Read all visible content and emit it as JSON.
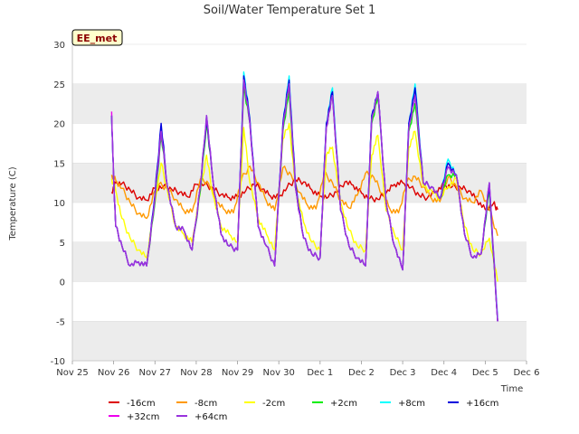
{
  "chart_data": {
    "type": "line",
    "title": "Soil/Water Temperature Set 1",
    "xlabel": "Time",
    "ylabel": "Temperature (C)",
    "badge": "EE_met",
    "xlim": [
      0,
      11
    ],
    "ylim": [
      -10,
      30
    ],
    "yticks": [
      -10,
      -5,
      0,
      5,
      10,
      15,
      20,
      25,
      30
    ],
    "xticks": [
      {
        "v": 0,
        "label": "Nov 25"
      },
      {
        "v": 1,
        "label": "Nov 26"
      },
      {
        "v": 2,
        "label": "Nov 27"
      },
      {
        "v": 3,
        "label": "Nov 28"
      },
      {
        "v": 4,
        "label": "Nov 29"
      },
      {
        "v": 5,
        "label": "Nov 30"
      },
      {
        "v": 6,
        "label": "Dec 1"
      },
      {
        "v": 7,
        "label": "Dec 2"
      },
      {
        "v": 8,
        "label": "Dec 3"
      },
      {
        "v": 9,
        "label": "Dec 4"
      },
      {
        "v": 10,
        "label": "Dec 5"
      },
      {
        "v": 11,
        "label": "Dec 6"
      }
    ],
    "bands": [
      [
        -10,
        -5
      ],
      [
        0,
        5
      ],
      [
        10,
        15
      ],
      [
        20,
        25
      ]
    ],
    "series": [
      {
        "name": "-16cm",
        "color": "#dd0000",
        "x": [
          0.95,
          1.05,
          1.2,
          1.4,
          1.6,
          1.8,
          2.0,
          2.2,
          2.4,
          2.6,
          2.8,
          3.0,
          3.2,
          3.4,
          3.6,
          3.8,
          4.0,
          4.2,
          4.4,
          4.6,
          4.8,
          5.0,
          5.2,
          5.4,
          5.6,
          5.8,
          6.0,
          6.2,
          6.4,
          6.6,
          6.8,
          7.0,
          7.2,
          7.4,
          7.6,
          7.8,
          8.0,
          8.2,
          8.4,
          8.6,
          8.8,
          9.0,
          9.2,
          9.4,
          9.6,
          9.8,
          10.0,
          10.2,
          10.3
        ],
        "y": [
          11.3,
          12.5,
          12.4,
          11.6,
          10.6,
          10.3,
          11.8,
          12.0,
          11.7,
          11.3,
          10.7,
          12.3,
          12.3,
          11.8,
          11.0,
          10.6,
          10.7,
          11.5,
          12.3,
          11.7,
          10.8,
          10.7,
          11.9,
          12.9,
          12.6,
          11.6,
          10.8,
          10.7,
          11.3,
          12.6,
          12.2,
          11.2,
          10.5,
          10.4,
          11.2,
          12.3,
          12.5,
          11.9,
          10.9,
          10.6,
          11.4,
          12.2,
          12.0,
          11.9,
          11.5,
          10.3,
          9.1,
          9.9,
          9.1
        ]
      },
      {
        "name": "-8cm",
        "color": "#ff9900",
        "x": [
          0.95,
          1.05,
          1.2,
          1.4,
          1.6,
          1.8,
          2.0,
          2.1,
          2.3,
          2.5,
          2.7,
          2.9,
          3.1,
          3.3,
          3.5,
          3.7,
          3.9,
          4.1,
          4.3,
          4.5,
          4.7,
          4.9,
          5.1,
          5.3,
          5.5,
          5.7,
          5.9,
          6.1,
          6.3,
          6.5,
          6.7,
          6.9,
          7.1,
          7.3,
          7.5,
          7.7,
          7.9,
          8.1,
          8.3,
          8.5,
          8.7,
          8.9,
          9.1,
          9.3,
          9.5,
          9.7,
          9.9,
          10.1,
          10.3
        ],
        "y": [
          13.5,
          12.8,
          11.8,
          10.0,
          8.6,
          8.0,
          11.5,
          12.3,
          11.8,
          10.4,
          9.0,
          8.8,
          13.0,
          12.4,
          10.0,
          9.0,
          8.7,
          13.0,
          14.6,
          12.5,
          10.2,
          9.0,
          14.4,
          13.5,
          11.3,
          9.6,
          9.2,
          13.7,
          12.5,
          10.3,
          9.3,
          10.9,
          13.7,
          13.2,
          11.2,
          9.1,
          8.7,
          12.6,
          13.3,
          12.0,
          10.5,
          10.1,
          13.2,
          12.0,
          10.5,
          10.0,
          11.5,
          9.1,
          5.8
        ]
      },
      {
        "name": "-2cm",
        "color": "#ffff00",
        "x": [
          0.95,
          1.05,
          1.2,
          1.4,
          1.6,
          1.8,
          2.0,
          2.15,
          2.3,
          2.5,
          2.7,
          2.9,
          3.1,
          3.25,
          3.4,
          3.6,
          3.8,
          4.0,
          4.15,
          4.3,
          4.5,
          4.7,
          4.9,
          5.1,
          5.25,
          5.4,
          5.6,
          5.8,
          6.0,
          6.15,
          6.3,
          6.5,
          6.7,
          6.9,
          7.1,
          7.25,
          7.4,
          7.6,
          7.8,
          8.0,
          8.15,
          8.3,
          8.5,
          8.7,
          8.9,
          9.1,
          9.3,
          9.5,
          9.7,
          9.9,
          10.1,
          10.3
        ],
        "y": [
          13.0,
          11.5,
          8.0,
          5.5,
          4.0,
          3.0,
          10.0,
          15.0,
          11.5,
          7.0,
          6.0,
          5.0,
          11.5,
          16.0,
          11.0,
          7.0,
          6.0,
          5.0,
          19.5,
          12.5,
          8.0,
          6.0,
          4.0,
          18.0,
          20.0,
          12.0,
          7.5,
          5.0,
          4.0,
          16.0,
          17.0,
          10.0,
          6.5,
          4.5,
          4.0,
          16.0,
          18.5,
          9.0,
          6.0,
          4.0,
          17.0,
          19.0,
          12.0,
          11.5,
          10.5,
          12.0,
          13.0,
          7.0,
          4.0,
          3.5,
          5.5,
          0.0
        ]
      },
      {
        "name": "+2cm",
        "color": "#00ee00",
        "x": [
          0.95,
          1.0,
          1.05,
          1.2,
          1.4,
          1.6,
          1.8,
          2.0,
          2.15,
          2.3,
          2.5,
          2.7,
          2.9,
          3.1,
          3.25,
          3.4,
          3.6,
          3.8,
          4.0,
          4.15,
          4.3,
          4.5,
          4.7,
          4.9,
          5.1,
          5.25,
          5.4,
          5.6,
          5.8,
          6.0,
          6.15,
          6.3,
          6.5,
          6.7,
          6.9,
          7.1,
          7.25,
          7.4,
          7.6,
          7.8,
          8.0,
          8.15,
          8.3,
          8.5,
          8.7,
          8.9,
          9.1,
          9.3,
          9.5,
          9.7,
          9.9,
          10.1,
          10.3
        ],
        "y": [
          21.0,
          13.0,
          7.0,
          4.5,
          2.0,
          2.5,
          2.0,
          10.0,
          18.5,
          12.0,
          7.0,
          6.5,
          4.0,
          11.5,
          20.0,
          13.0,
          6.0,
          4.5,
          4.0,
          24.5,
          20.0,
          7.0,
          4.5,
          2.0,
          19.0,
          24.0,
          12.0,
          5.5,
          3.5,
          3.0,
          19.5,
          23.5,
          9.0,
          4.5,
          3.0,
          2.0,
          20.0,
          23.5,
          10.0,
          4.5,
          1.5,
          19.0,
          22.5,
          12.5,
          12.0,
          10.5,
          13.5,
          13.5,
          6.0,
          3.0,
          3.5,
          11.5,
          -5.0
        ]
      },
      {
        "name": "+8cm",
        "color": "#00ffff",
        "x": [
          0.95,
          1.0,
          1.05,
          1.2,
          1.4,
          1.6,
          1.8,
          2.0,
          2.15,
          2.3,
          2.5,
          2.7,
          2.9,
          3.1,
          3.25,
          3.4,
          3.6,
          3.8,
          4.0,
          4.15,
          4.3,
          4.5,
          4.7,
          4.9,
          5.1,
          5.25,
          5.4,
          5.6,
          5.8,
          6.0,
          6.15,
          6.3,
          6.5,
          6.7,
          6.9,
          7.1,
          7.25,
          7.4,
          7.6,
          7.8,
          8.0,
          8.15,
          8.3,
          8.5,
          8.7,
          8.9,
          9.1,
          9.3,
          9.5,
          9.7,
          9.9,
          10.1,
          10.3
        ],
        "y": [
          21.0,
          13.0,
          7.0,
          4.5,
          2.0,
          2.5,
          2.0,
          11.0,
          19.5,
          12.0,
          7.0,
          6.5,
          4.0,
          12.0,
          21.0,
          13.0,
          6.0,
          4.5,
          4.0,
          26.5,
          20.5,
          7.0,
          4.5,
          2.0,
          20.0,
          26.0,
          12.5,
          5.5,
          3.5,
          3.0,
          20.0,
          24.5,
          9.0,
          4.5,
          3.0,
          2.0,
          21.0,
          24.0,
          10.0,
          4.5,
          1.5,
          20.0,
          25.0,
          12.5,
          12.0,
          10.5,
          15.5,
          13.5,
          6.0,
          3.0,
          3.5,
          12.5,
          -4.5
        ]
      },
      {
        "name": "+16cm",
        "color": "#0000dd",
        "x": [
          0.95,
          1.0,
          1.05,
          1.2,
          1.4,
          1.6,
          1.8,
          2.0,
          2.15,
          2.3,
          2.5,
          2.7,
          2.9,
          3.1,
          3.25,
          3.4,
          3.6,
          3.8,
          4.0,
          4.15,
          4.3,
          4.5,
          4.7,
          4.9,
          5.1,
          5.25,
          5.4,
          5.6,
          5.8,
          6.0,
          6.15,
          6.3,
          6.5,
          6.7,
          6.9,
          7.1,
          7.25,
          7.4,
          7.6,
          7.8,
          8.0,
          8.15,
          8.3,
          8.5,
          8.7,
          8.9,
          9.1,
          9.3,
          9.5,
          9.7,
          9.9,
          10.1,
          10.3
        ],
        "y": [
          21.0,
          13.0,
          7.0,
          4.5,
          2.0,
          2.5,
          2.0,
          11.0,
          20.0,
          12.0,
          7.0,
          6.5,
          4.0,
          12.0,
          20.5,
          13.0,
          6.0,
          4.5,
          4.0,
          26.0,
          20.5,
          7.0,
          4.5,
          2.0,
          20.0,
          25.5,
          12.5,
          5.5,
          3.5,
          3.0,
          20.0,
          24.0,
          9.0,
          4.5,
          3.0,
          2.0,
          21.0,
          24.0,
          10.0,
          4.5,
          1.5,
          20.0,
          24.5,
          12.5,
          12.0,
          10.5,
          15.0,
          13.5,
          6.0,
          3.0,
          3.5,
          12.0,
          -5.0
        ]
      },
      {
        "name": "+32cm",
        "color": "#ee00ee",
        "x": [
          0.95,
          1.0,
          1.05,
          1.2,
          1.4,
          1.6,
          1.8,
          2.0,
          2.15,
          2.3,
          2.5,
          2.7,
          2.9,
          3.1,
          3.25,
          3.4,
          3.6,
          3.8,
          4.0,
          4.15,
          4.3,
          4.5,
          4.7,
          4.9,
          5.1,
          5.25,
          5.4,
          5.6,
          5.8,
          6.0,
          6.15,
          6.3,
          6.5,
          6.7,
          6.9,
          7.1,
          7.25,
          7.4,
          7.6,
          7.8,
          8.0,
          8.15,
          8.3,
          8.5,
          8.7,
          8.9,
          9.1,
          9.3,
          9.5,
          9.7,
          9.9,
          10.1,
          10.3
        ],
        "y": [
          21.5,
          13.0,
          7.0,
          4.5,
          2.0,
          2.5,
          2.0,
          10.5,
          19.0,
          12.0,
          7.0,
          6.5,
          4.0,
          12.0,
          21.0,
          13.0,
          6.0,
          4.5,
          4.0,
          25.5,
          20.0,
          7.0,
          4.5,
          2.0,
          19.5,
          25.0,
          12.0,
          5.5,
          3.5,
          3.0,
          19.5,
          23.5,
          9.0,
          4.5,
          3.0,
          2.0,
          20.5,
          24.0,
          10.0,
          4.5,
          1.5,
          19.5,
          23.5,
          12.5,
          12.0,
          10.5,
          14.5,
          13.5,
          6.0,
          3.0,
          3.5,
          12.5,
          -5.0
        ]
      },
      {
        "name": "+64cm",
        "color": "#9933dd",
        "x": [
          0.95,
          1.0,
          1.05,
          1.2,
          1.4,
          1.6,
          1.8,
          2.0,
          2.15,
          2.3,
          2.5,
          2.7,
          2.9,
          3.1,
          3.25,
          3.4,
          3.6,
          3.8,
          4.0,
          4.15,
          4.3,
          4.5,
          4.7,
          4.9,
          5.1,
          5.25,
          5.4,
          5.6,
          5.8,
          6.0,
          6.15,
          6.3,
          6.5,
          6.7,
          6.9,
          7.1,
          7.25,
          7.4,
          7.6,
          7.8,
          8.0,
          8.15,
          8.3,
          8.5,
          8.7,
          8.9,
          9.1,
          9.3,
          9.5,
          9.7,
          9.9,
          10.1,
          10.3
        ],
        "y": [
          21.0,
          13.0,
          7.0,
          4.5,
          2.0,
          2.5,
          2.0,
          10.5,
          19.0,
          12.0,
          7.0,
          6.5,
          4.0,
          12.0,
          21.0,
          13.0,
          6.0,
          4.5,
          4.0,
          25.5,
          20.0,
          7.0,
          4.5,
          2.0,
          19.5,
          25.0,
          12.0,
          5.5,
          3.5,
          3.0,
          19.5,
          23.5,
          9.0,
          4.5,
          3.0,
          2.0,
          20.5,
          24.0,
          10.0,
          4.5,
          1.5,
          19.5,
          23.5,
          12.5,
          12.0,
          10.5,
          14.5,
          13.5,
          6.0,
          3.0,
          3.5,
          12.5,
          -5.0
        ]
      }
    ]
  }
}
